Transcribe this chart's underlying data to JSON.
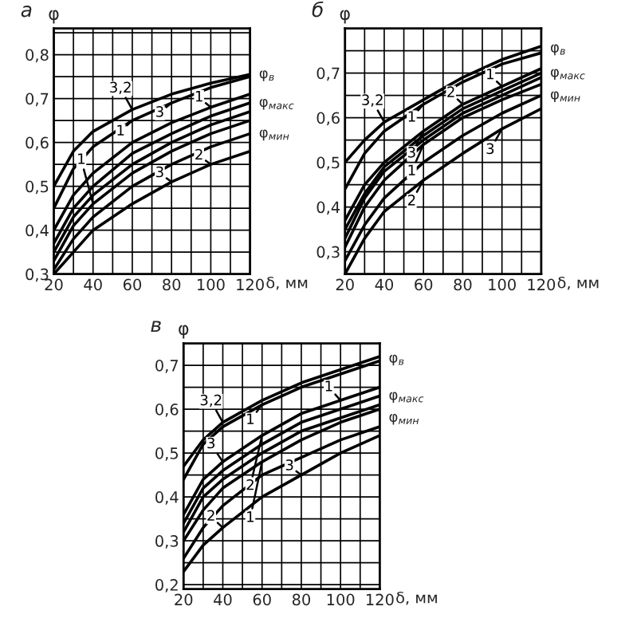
{
  "chart_data": [
    {
      "type": "line",
      "title": "а",
      "xlabel": "δ, мм",
      "ylabel": "φ",
      "grid": true,
      "marker": "none",
      "line_style": "solid",
      "xlim": [
        20,
        120
      ],
      "xticks": [
        20,
        {
          "value": 30,
          "label": null
        },
        40,
        {
          "value": 50,
          "label": null
        },
        60,
        {
          "value": 70,
          "label": null
        },
        80,
        {
          "value": 90,
          "label": null
        },
        100,
        {
          "value": 110,
          "label": null
        },
        120
      ],
      "ylim": [
        0.3,
        0.86
      ],
      "yticks": [
        {
          "value": 0.3,
          "label": "0,3"
        },
        {
          "value": 0.35,
          "label": null
        },
        {
          "value": 0.4,
          "label": "0,4"
        },
        {
          "value": 0.45,
          "label": null
        },
        {
          "value": 0.5,
          "label": "0,5"
        },
        {
          "value": 0.55,
          "label": null
        },
        {
          "value": 0.6,
          "label": "0,6"
        },
        {
          "value": 0.65,
          "label": null
        },
        {
          "value": 0.7,
          "label": "0,7"
        },
        {
          "value": 0.75,
          "label": null
        },
        {
          "value": 0.8,
          "label": "0,8"
        },
        {
          "value": 0.85,
          "label": null
        }
      ],
      "x": [
        20,
        30,
        40,
        60,
        80,
        100,
        120
      ],
      "series": [
        {
          "color": "#000000",
          "values": [
            0.5,
            0.58,
            0.625,
            0.675,
            0.71,
            0.735,
            0.755
          ]
        },
        {
          "color": "#000000",
          "values": [
            0.45,
            0.54,
            0.59,
            0.65,
            0.69,
            0.725,
            0.75
          ]
        },
        {
          "color": "#000000",
          "values": [
            0.4,
            0.48,
            0.53,
            0.6,
            0.645,
            0.68,
            0.71
          ]
        },
        {
          "color": "#000000",
          "values": [
            0.37,
            0.45,
            0.5,
            0.575,
            0.62,
            0.66,
            0.69
          ]
        },
        {
          "color": "#000000",
          "values": [
            0.35,
            0.43,
            0.48,
            0.55,
            0.6,
            0.64,
            0.67
          ]
        },
        {
          "color": "#000000",
          "values": [
            0.33,
            0.41,
            0.46,
            0.53,
            0.58,
            0.62,
            0.65
          ]
        },
        {
          "color": "#000000",
          "values": [
            0.31,
            0.38,
            0.43,
            0.5,
            0.55,
            0.59,
            0.62
          ]
        },
        {
          "color": "#000000",
          "values": [
            0.3,
            0.35,
            0.4,
            0.46,
            0.51,
            0.55,
            0.58
          ]
        }
      ],
      "annotations": [
        {
          "text": "3,2",
          "x": 60,
          "y": 0.675
        },
        {
          "text": "3",
          "x": 80,
          "y": 0.69
        },
        {
          "text": "1",
          "x": 60,
          "y": 0.65
        },
        {
          "text": "1",
          "x": 100,
          "y": 0.68
        },
        {
          "text": "1",
          "x": 40,
          "y": 0.46
        },
        {
          "text": "2",
          "x": 100,
          "y": 0.55
        },
        {
          "text": "3",
          "x": 80,
          "y": 0.51
        },
        {
          "text": "φ$_{в}$",
          "x": 120,
          "y": 0.755
        },
        {
          "text": "φ$_{макс}$",
          "x": 120,
          "y": 0.69
        },
        {
          "text": "φ$_{мин}$",
          "x": 120,
          "y": 0.62
        }
      ]
    },
    {
      "type": "line",
      "title": "б",
      "xlabel": "δ, мм",
      "ylabel": "φ",
      "grid": true,
      "marker": "none",
      "line_style": "solid",
      "xlim": [
        20,
        120
      ],
      "xticks": [
        20,
        {
          "value": 30,
          "label": null
        },
        40,
        {
          "value": 50,
          "label": null
        },
        60,
        {
          "value": 70,
          "label": null
        },
        80,
        {
          "value": 90,
          "label": null
        },
        100,
        {
          "value": 110,
          "label": null
        },
        120
      ],
      "ylim": [
        0.25,
        0.8
      ],
      "yticks": [
        {
          "value": 0.25,
          "label": null
        },
        {
          "value": 0.3,
          "label": "0,3"
        },
        {
          "value": 0.35,
          "label": null
        },
        {
          "value": 0.4,
          "label": "0,4"
        },
        {
          "value": 0.45,
          "label": null
        },
        {
          "value": 0.5,
          "label": "0,5"
        },
        {
          "value": 0.55,
          "label": null
        },
        {
          "value": 0.6,
          "label": "0,6"
        },
        {
          "value": 0.65,
          "label": null
        },
        {
          "value": 0.7,
          "label": "0,7"
        },
        {
          "value": 0.75,
          "label": null
        }
      ],
      "x": [
        20,
        30,
        40,
        60,
        80,
        100,
        120
      ],
      "series": [
        {
          "color": "#000000",
          "values": [
            0.5,
            0.55,
            0.59,
            0.64,
            0.69,
            0.73,
            0.76
          ]
        },
        {
          "color": "#000000",
          "values": [
            0.44,
            0.52,
            0.57,
            0.63,
            0.68,
            0.72,
            0.745
          ]
        },
        {
          "color": "#000000",
          "values": [
            0.37,
            0.45,
            0.5,
            0.57,
            0.63,
            0.67,
            0.71
          ]
        },
        {
          "color": "#000000",
          "values": [
            0.35,
            0.43,
            0.49,
            0.56,
            0.62,
            0.66,
            0.7
          ]
        },
        {
          "color": "#000000",
          "values": [
            0.33,
            0.42,
            0.48,
            0.55,
            0.61,
            0.65,
            0.69
          ]
        },
        {
          "color": "#000000",
          "values": [
            0.31,
            0.4,
            0.46,
            0.54,
            0.6,
            0.64,
            0.675
          ]
        },
        {
          "color": "#000000",
          "values": [
            0.28,
            0.36,
            0.42,
            0.5,
            0.56,
            0.61,
            0.65
          ]
        },
        {
          "color": "#000000",
          "values": [
            0.25,
            0.33,
            0.39,
            0.46,
            0.52,
            0.575,
            0.62
          ]
        }
      ],
      "annotations": [
        {
          "text": "3,2",
          "x": 40,
          "y": 0.59
        },
        {
          "text": "1",
          "x": 60,
          "y": 0.63
        },
        {
          "text": "3",
          "x": 60,
          "y": 0.57
        },
        {
          "text": "2",
          "x": 80,
          "y": 0.63
        },
        {
          "text": "1",
          "x": 100,
          "y": 0.67
        },
        {
          "text": "1",
          "x": 60,
          "y": 0.54
        },
        {
          "text": "2",
          "x": 60,
          "y": 0.46
        },
        {
          "text": "3",
          "x": 100,
          "y": 0.575
        },
        {
          "text": "φ$_{в}$",
          "x": 120,
          "y": 0.755
        },
        {
          "text": "φ$_{макс}$",
          "x": 120,
          "y": 0.7
        },
        {
          "text": "φ$_{мин}$",
          "x": 120,
          "y": 0.65
        }
      ]
    },
    {
      "type": "line",
      "title": "в",
      "xlabel": "δ, мм",
      "ylabel": "φ",
      "grid": true,
      "marker": "none",
      "line_style": "solid",
      "xlim": [
        20,
        120
      ],
      "xticks": [
        20,
        {
          "value": 30,
          "label": null
        },
        40,
        {
          "value": 50,
          "label": null
        },
        60,
        {
          "value": 70,
          "label": null
        },
        80,
        {
          "value": 90,
          "label": null
        },
        100,
        {
          "value": 110,
          "label": null
        },
        120
      ],
      "ylim": [
        0.19,
        0.75
      ],
      "yticks": [
        {
          "value": 0.2,
          "label": "0,2"
        },
        {
          "value": 0.25,
          "label": null
        },
        {
          "value": 0.3,
          "label": "0,3"
        },
        {
          "value": 0.35,
          "label": null
        },
        {
          "value": 0.4,
          "label": "0,4"
        },
        {
          "value": 0.45,
          "label": null
        },
        {
          "value": 0.5,
          "label": "0,5"
        },
        {
          "value": 0.55,
          "label": null
        },
        {
          "value": 0.6,
          "label": "0,6"
        },
        {
          "value": 0.65,
          "label": null
        },
        {
          "value": 0.7,
          "label": "0,7"
        }
      ],
      "x": [
        20,
        30,
        40,
        60,
        80,
        100,
        120
      ],
      "series": [
        {
          "color": "#000000",
          "values": [
            0.47,
            0.53,
            0.57,
            0.62,
            0.66,
            0.69,
            0.72
          ]
        },
        {
          "color": "#000000",
          "values": [
            0.44,
            0.52,
            0.56,
            0.61,
            0.65,
            0.68,
            0.71
          ]
        },
        {
          "color": "#000000",
          "values": [
            0.36,
            0.44,
            0.48,
            0.54,
            0.59,
            0.62,
            0.65
          ]
        },
        {
          "color": "#000000",
          "values": [
            0.34,
            0.42,
            0.46,
            0.52,
            0.57,
            0.6,
            0.63
          ]
        },
        {
          "color": "#000000",
          "values": [
            0.32,
            0.4,
            0.44,
            0.5,
            0.55,
            0.58,
            0.61
          ]
        },
        {
          "color": "#000000",
          "values": [
            0.3,
            0.37,
            0.42,
            0.48,
            0.53,
            0.57,
            0.6
          ]
        },
        {
          "color": "#000000",
          "values": [
            0.26,
            0.33,
            0.38,
            0.45,
            0.49,
            0.53,
            0.56
          ]
        },
        {
          "color": "#000000",
          "values": [
            0.23,
            0.29,
            0.33,
            0.4,
            0.45,
            0.5,
            0.54
          ]
        }
      ],
      "annotations": [
        {
          "text": "3,2",
          "x": 40,
          "y": 0.57
        },
        {
          "text": "1",
          "x": 60,
          "y": 0.61
        },
        {
          "text": "3",
          "x": 40,
          "y": 0.48
        },
        {
          "text": "2",
          "x": 60,
          "y": 0.54
        },
        {
          "text": "1",
          "x": 100,
          "y": 0.62
        },
        {
          "text": "1",
          "x": 60,
          "y": 0.48
        },
        {
          "text": "2",
          "x": 40,
          "y": 0.33
        },
        {
          "text": "3",
          "x": 80,
          "y": 0.45
        },
        {
          "text": "φ$_{в}$",
          "x": 120,
          "y": 0.715
        },
        {
          "text": "φ$_{макс}$",
          "x": 120,
          "y": 0.63
        },
        {
          "text": "φ$_{мин}$",
          "x": 120,
          "y": 0.58
        }
      ]
    }
  ]
}
